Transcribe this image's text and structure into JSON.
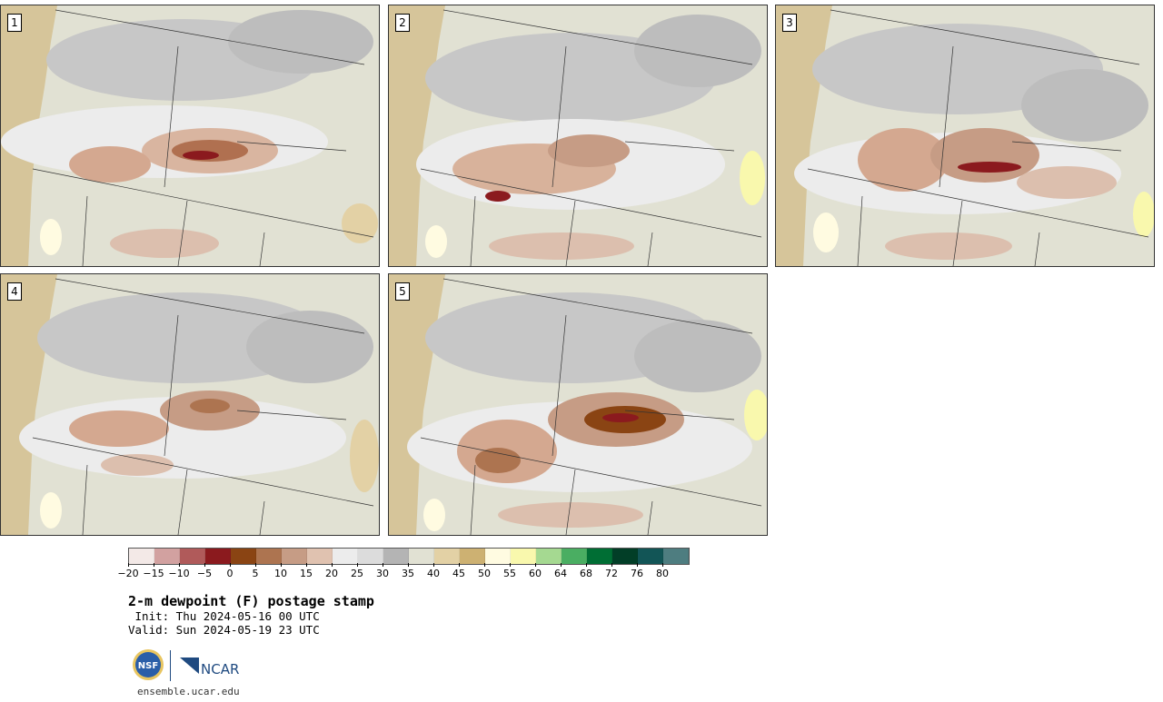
{
  "panels": [
    {
      "label": "1"
    },
    {
      "label": "2"
    },
    {
      "label": "3"
    },
    {
      "label": "4"
    },
    {
      "label": "5"
    }
  ],
  "colorbar": {
    "colors": [
      "#f3e9e7",
      "#d2a1a0",
      "#b05a5a",
      "#8b1a1e",
      "#8a4413",
      "#ad7450",
      "#c69c85",
      "#e0c2b0",
      "#ececec",
      "#dcdcdc",
      "#b4b4b4",
      "#e1e1d3",
      "#e3d1a5",
      "#cdb172",
      "#fffbe1",
      "#f9f8ad",
      "#a5d991",
      "#4aae62",
      "#006e34",
      "#023e27",
      "#125556",
      "#4e7d80"
    ],
    "tick_labels": [
      "−20",
      "−15",
      "−10",
      "−5",
      "0",
      "5",
      "10",
      "15",
      "20",
      "25",
      "30",
      "35",
      "40",
      "45",
      "50",
      "55",
      "60",
      "64",
      "68",
      "72",
      "76",
      "80"
    ]
  },
  "title": "2-m dewpoint (F) postage stamp",
  "init": " Init: Thu 2024-05-16 00 UTC",
  "valid": "Valid: Sun 2024-05-19 23 UTC",
  "logos": {
    "nsf": "NSF",
    "ncar": "NCAR"
  },
  "footer_url": "ensemble.ucar.edu"
}
